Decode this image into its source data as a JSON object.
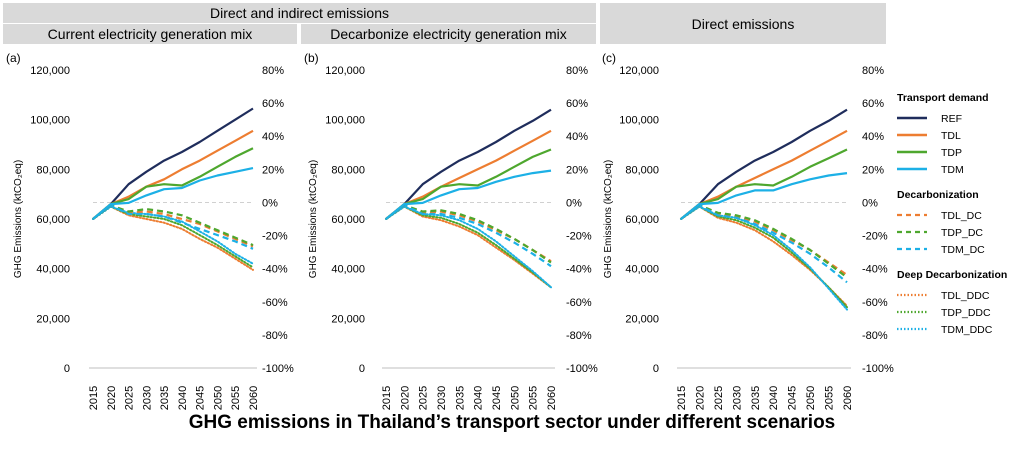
{
  "headers": {
    "direct_indirect": "Direct and indirect emissions",
    "current_mix": "Current electricity generation mix",
    "decarbonize_mix": "Decarbonize electricity generation mix",
    "direct": "Direct emissions"
  },
  "title": "GHG emissions in Thailand’s transport sector under different scenarios",
  "legend": {
    "groups": [
      {
        "title": "Transport demand",
        "items": [
          {
            "label": "REF",
            "color": "#1f2d5c",
            "style": "solid"
          },
          {
            "label": "TDL",
            "color": "#ed7d31",
            "style": "solid"
          },
          {
            "label": "TDP",
            "color": "#4ea72e",
            "style": "solid"
          },
          {
            "label": "TDM",
            "color": "#1cb0e6",
            "style": "solid"
          }
        ]
      },
      {
        "title": "Decarbonization",
        "items": [
          {
            "label": "TDL_DC",
            "color": "#ed7d31",
            "style": "dashed"
          },
          {
            "label": "TDP_DC",
            "color": "#4ea72e",
            "style": "dashed"
          },
          {
            "label": "TDM_DC",
            "color": "#1cb0e6",
            "style": "dashed"
          }
        ]
      },
      {
        "title": "Deep Decarbonization",
        "items": [
          {
            "label": "TDL_DDC",
            "color": "#ed7d31",
            "style": "dotted"
          },
          {
            "label": "TDP_DDC",
            "color": "#4ea72e",
            "style": "dotted"
          },
          {
            "label": "TDM_DDC",
            "color": "#1cb0e6",
            "style": "dotted"
          }
        ]
      }
    ]
  },
  "chart_data": [
    {
      "type": "line",
      "panel_label": "(a)",
      "ylabel": "GHG Emissions (ktCO₂eq)",
      "ylim": [
        0,
        120000
      ],
      "y_ticks": [
        "0",
        "20,000",
        "40,000",
        "60,000",
        "80,000",
        "100,000",
        "120,000"
      ],
      "y2lim": [
        -100,
        80
      ],
      "y2_ticks": [
        "-100%",
        "-80%",
        "-60%",
        "-40%",
        "-20%",
        "0%",
        "20%",
        "40%",
        "60%",
        "80%"
      ],
      "x": [
        2015,
        2020,
        2025,
        2030,
        2035,
        2040,
        2045,
        2050,
        2055,
        2060
      ],
      "series": [
        {
          "name": "REF",
          "values": [
            60000,
            66000,
            74000,
            79000,
            83500,
            87000,
            91000,
            95500,
            100000,
            104500
          ]
        },
        {
          "name": "TDL",
          "values": [
            60000,
            66000,
            69000,
            73000,
            76000,
            80000,
            83500,
            87500,
            91500,
            95500
          ]
        },
        {
          "name": "TDP",
          "values": [
            60000,
            66000,
            68000,
            73000,
            74000,
            73500,
            77000,
            81000,
            85000,
            88500
          ]
        },
        {
          "name": "TDM",
          "values": [
            60000,
            66000,
            66500,
            69500,
            72000,
            72500,
            75500,
            77500,
            79000,
            80500
          ]
        },
        {
          "name": "TDL_DC",
          "values": [
            60000,
            65500,
            62500,
            63000,
            62000,
            60000,
            58000,
            55000,
            52000,
            49000
          ]
        },
        {
          "name": "TDP_DC",
          "values": [
            60000,
            65500,
            63000,
            64000,
            63000,
            61500,
            58500,
            55500,
            52500,
            49500
          ]
        },
        {
          "name": "TDM_DC",
          "values": [
            60000,
            65500,
            62000,
            62000,
            61000,
            58500,
            56000,
            53500,
            51000,
            48000
          ]
        },
        {
          "name": "TDL_DDC",
          "values": [
            60000,
            65000,
            61500,
            60000,
            58500,
            56000,
            52000,
            48500,
            44000,
            39500
          ]
        },
        {
          "name": "TDP_DDC",
          "values": [
            60000,
            65000,
            62000,
            61000,
            60000,
            57500,
            53500,
            49500,
            45000,
            40500
          ]
        },
        {
          "name": "TDM_DDC",
          "values": [
            60000,
            65000,
            62500,
            62000,
            61000,
            59000,
            55000,
            51000,
            46000,
            42000
          ]
        }
      ]
    },
    {
      "type": "line",
      "panel_label": "(b)",
      "ylabel": "GHG Emissions (ktCO₂eq)",
      "ylim": [
        0,
        120000
      ],
      "y_ticks": [
        "0",
        "20,000",
        "40,000",
        "60,000",
        "80,000",
        "100,000",
        "120,000"
      ],
      "y2lim": [
        -100,
        80
      ],
      "y2_ticks": [
        "-100%",
        "-80%",
        "-60%",
        "-40%",
        "-20%",
        "0%",
        "20%",
        "40%",
        "60%",
        "80%"
      ],
      "x": [
        2015,
        2020,
        2025,
        2030,
        2035,
        2040,
        2045,
        2050,
        2055,
        2060
      ],
      "series": [
        {
          "name": "REF",
          "values": [
            60000,
            66000,
            74000,
            79000,
            83500,
            87000,
            91000,
            95500,
            99500,
            104000
          ]
        },
        {
          "name": "TDL",
          "values": [
            60000,
            66000,
            69000,
            73000,
            76500,
            80000,
            83500,
            87500,
            91500,
            95500
          ]
        },
        {
          "name": "TDP",
          "values": [
            60000,
            66000,
            68000,
            73000,
            74000,
            73500,
            77000,
            81000,
            85000,
            88000
          ]
        },
        {
          "name": "TDM",
          "values": [
            60000,
            66000,
            66500,
            69500,
            72000,
            72500,
            75000,
            77000,
            78500,
            79500
          ]
        },
        {
          "name": "TDL_DC",
          "values": [
            60000,
            65500,
            62500,
            63000,
            61500,
            59000,
            55500,
            52000,
            47500,
            43000
          ]
        },
        {
          "name": "TDP_DC",
          "values": [
            60000,
            65500,
            63000,
            63500,
            62000,
            59500,
            56000,
            52000,
            47500,
            42500
          ]
        },
        {
          "name": "TDM_DC",
          "values": [
            60000,
            65500,
            62000,
            62000,
            60500,
            58000,
            54500,
            50500,
            46000,
            41000
          ]
        },
        {
          "name": "TDL_DDC",
          "values": [
            60000,
            65000,
            61000,
            59500,
            57000,
            53500,
            48500,
            43500,
            38000,
            32500
          ]
        },
        {
          "name": "TDP_DDC",
          "values": [
            60000,
            65000,
            61500,
            60500,
            58000,
            54500,
            49500,
            44000,
            38500,
            32500
          ]
        },
        {
          "name": "TDM_DDC",
          "values": [
            60000,
            65000,
            62000,
            61500,
            59500,
            56000,
            51000,
            45000,
            39000,
            32500
          ]
        }
      ]
    },
    {
      "type": "line",
      "panel_label": "(c)",
      "ylabel": "GHG Emissions (ktCO₂eq)",
      "ylim": [
        0,
        120000
      ],
      "y_ticks": [
        "0",
        "20,000",
        "40,000",
        "60,000",
        "80,000",
        "100,000",
        "120,000"
      ],
      "y2lim": [
        -100,
        80
      ],
      "y2_ticks": [
        "-100%",
        "-80%",
        "-60%",
        "-40%",
        "-20%",
        "0%",
        "20%",
        "40%",
        "60%",
        "80%"
      ],
      "x": [
        2015,
        2020,
        2025,
        2030,
        2035,
        2040,
        2045,
        2050,
        2055,
        2060
      ],
      "series": [
        {
          "name": "REF",
          "values": [
            60000,
            66000,
            74000,
            79000,
            83500,
            87000,
            91000,
            95500,
            99500,
            104000
          ]
        },
        {
          "name": "TDL",
          "values": [
            60000,
            66000,
            69000,
            73000,
            76500,
            80000,
            83500,
            87500,
            91500,
            95500
          ]
        },
        {
          "name": "TDP",
          "values": [
            60000,
            66000,
            68000,
            73000,
            74000,
            73500,
            77000,
            81000,
            84500,
            88000
          ]
        },
        {
          "name": "TDM",
          "values": [
            60000,
            66000,
            66500,
            69500,
            71500,
            71500,
            74000,
            76000,
            77500,
            78500
          ]
        },
        {
          "name": "TDL_DC",
          "values": [
            60000,
            65500,
            62000,
            61000,
            59000,
            55500,
            51500,
            47500,
            42500,
            37500
          ]
        },
        {
          "name": "TDP_DC",
          "values": [
            60000,
            65500,
            62500,
            61500,
            59500,
            56000,
            52000,
            47500,
            42000,
            36500
          ]
        },
        {
          "name": "TDM_DC",
          "values": [
            60000,
            65500,
            61500,
            60500,
            58000,
            54500,
            50500,
            46000,
            40500,
            34500
          ]
        },
        {
          "name": "TDL_DDC",
          "values": [
            60000,
            65000,
            60500,
            58500,
            55500,
            51000,
            45500,
            39500,
            32500,
            25000
          ]
        },
        {
          "name": "TDP_DDC",
          "values": [
            60000,
            65000,
            61000,
            59500,
            56500,
            52500,
            46500,
            40000,
            32500,
            24500
          ]
        },
        {
          "name": "TDM_DDC",
          "values": [
            60000,
            65000,
            61500,
            60500,
            57500,
            53500,
            47500,
            40500,
            32000,
            23500
          ]
        }
      ]
    }
  ]
}
